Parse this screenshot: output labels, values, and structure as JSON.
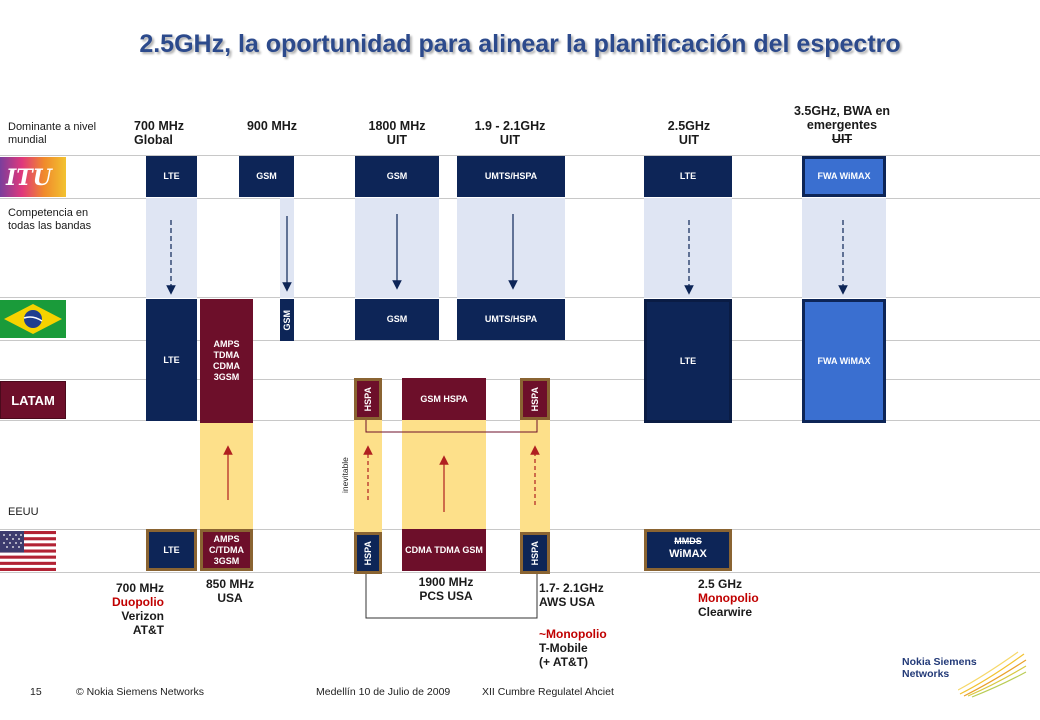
{
  "title": "2.5GHz, la oportunidad para alinear la planificación del espectro",
  "side_labels": {
    "dominant": "Dominante a nivel mundial",
    "competition": "Competencia en todas las bandas",
    "eeuu": "EEUU",
    "latam": "LATAM",
    "itu_logo": "ITU"
  },
  "columns": {
    "c700": {
      "line1": "700 MHz",
      "line2": "Global"
    },
    "c900": {
      "line1": "900 MHz"
    },
    "c1800": {
      "line1": "1800 MHz",
      "line2": "UIT"
    },
    "c19": {
      "line1": "1.9  -  2.1GHz",
      "line2": "UIT"
    },
    "c25": {
      "line1": "2.5GHz",
      "line2": "UIT"
    },
    "c35": {
      "line1": "3.5GHz, BWA en",
      "line2": "emergentes",
      "line3": "UIT"
    }
  },
  "blocks": {
    "itu_700": "LTE",
    "itu_900": "GSM",
    "itu_1800": "GSM",
    "itu_19": "UMTS/HSPA",
    "itu_25": "LTE",
    "itu_35": "FWA WiMAX",
    "br_700": "LTE",
    "br_850": "AMPS TDMA CDMA 3GSM",
    "br_900": "GSM",
    "br_1800": "GSM",
    "br_19": "UMTS/HSPA",
    "br_25": "LTE",
    "br_35": "FWA WiMAX",
    "latam_hspa_left": "HSPA",
    "latam_gsm_hspa": "GSM HSPA",
    "latam_hspa_right": "HSPA",
    "us_700": "LTE",
    "us_850": "AMPS C/TDMA 3GSM",
    "us_hspa_left": "HSPA",
    "us_1900": "CDMA TDMA GSM",
    "us_hspa_right": "HSPA",
    "us_mmds": "MMDS",
    "us_wimax": "WiMAX",
    "inevitable": "inevitable"
  },
  "bottom_notes": {
    "n700": {
      "line1": "700 MHz",
      "line2": "Duopolio",
      "line3": "Verizon",
      "line4": "AT&T"
    },
    "n850": {
      "line1": "850 MHz",
      "line2": "USA"
    },
    "n1900": {
      "line1": "1900 MHz",
      "line2": "PCS USA"
    },
    "n17": {
      "line1": "1.7- 2.1GHz",
      "line2": "AWS USA",
      "line3": "~Monopolio",
      "line4": "T-Mobile",
      "line5": "(+ AT&T)"
    },
    "n25": {
      "line1": "2.5 GHz",
      "line2": "Monopolio",
      "line3": "Clearwire"
    }
  },
  "footer": {
    "page": "15",
    "copyright": "© Nokia Siemens Networks",
    "event_date": "Medellín 10 de Julio de 2009",
    "event_name": "XII Cumbre Regulatel Ahciet",
    "logo_line1": "Nokia Siemens",
    "logo_line2": "Networks"
  },
  "colors": {
    "navy": "#0d2557",
    "blue": "#3a6fd0",
    "maroon": "#6d0f2a",
    "band_blue": "#dfe5f3",
    "band_yellow": "#fde08a",
    "title": "#2c4a8c",
    "red": "#c00000"
  }
}
